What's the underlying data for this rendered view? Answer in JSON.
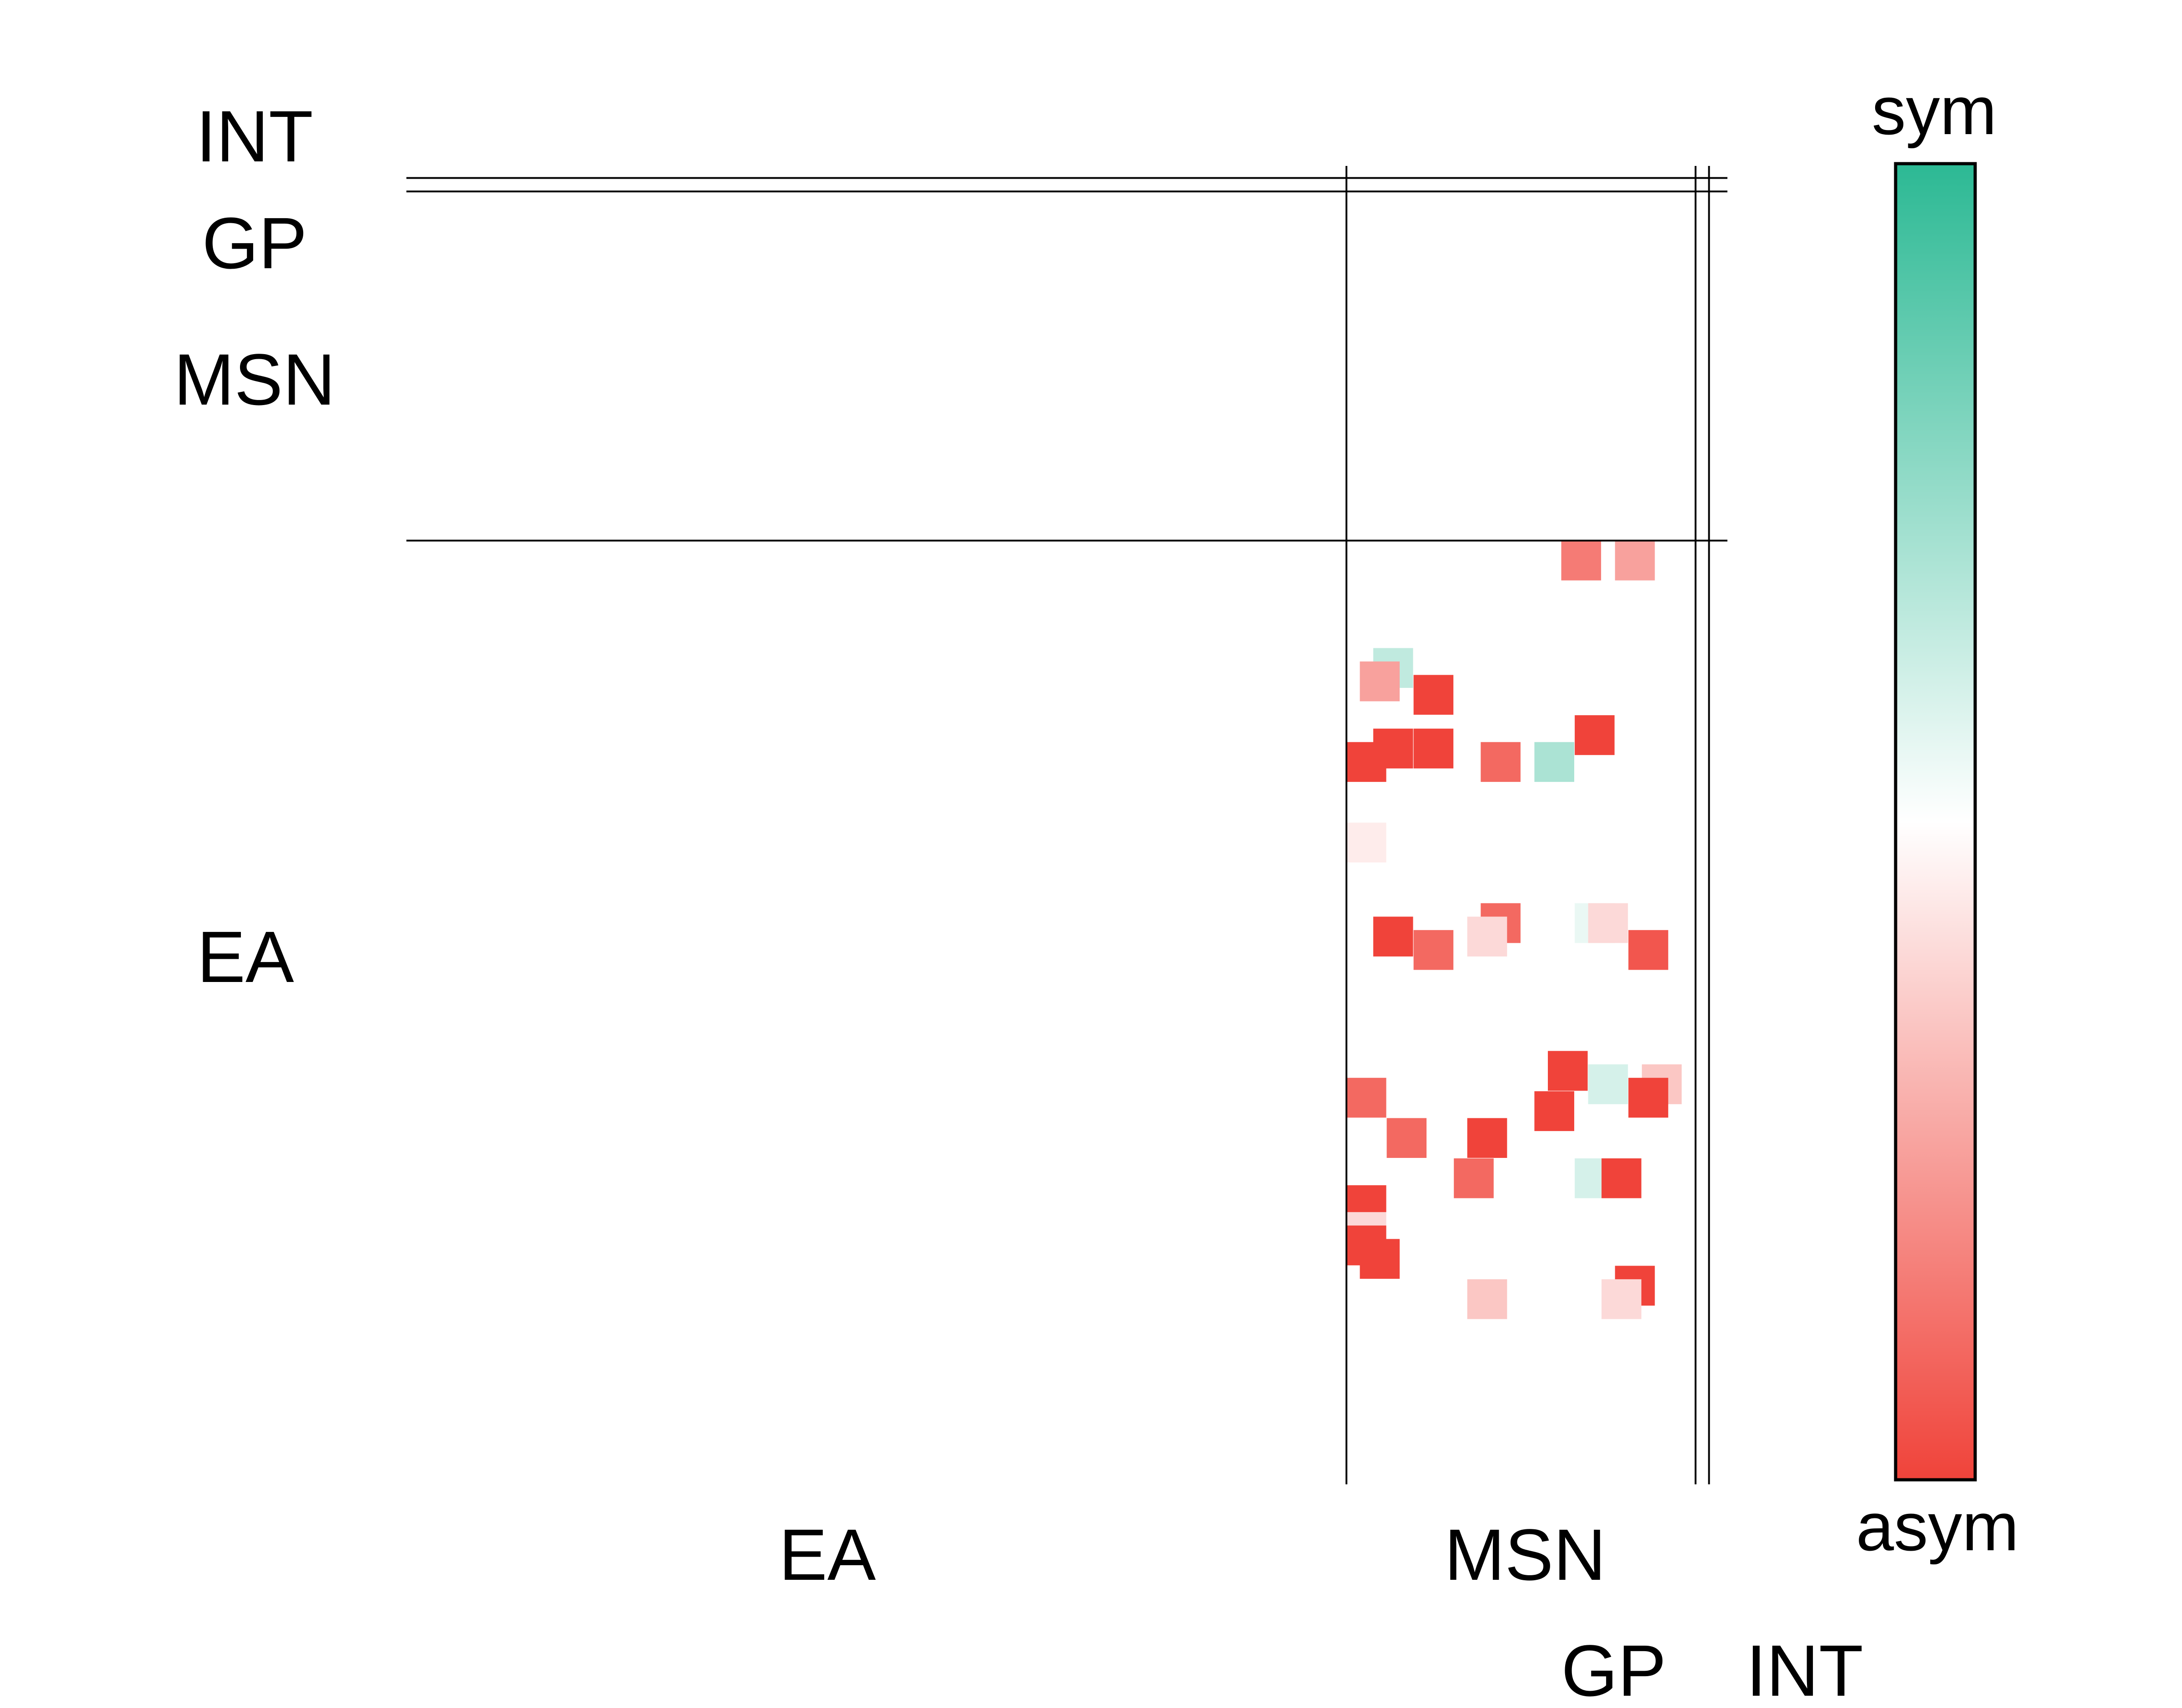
{
  "chart_data": {
    "type": "heatmap",
    "title": "",
    "xlabel": "",
    "ylabel": "",
    "groups": [
      {
        "name": "EA",
        "start": 0,
        "end": 70
      },
      {
        "name": "MSN",
        "start": 70,
        "end": 96
      },
      {
        "name": "GP",
        "start": 96,
        "end": 97
      },
      {
        "name": "INT",
        "start": 97,
        "end": 98
      }
    ],
    "n_cells": 98,
    "colorbar": {
      "top_label": "sym",
      "bottom_label": "asym",
      "colors": {
        "sym": "#2cb994",
        "mid": "#ffffff",
        "asym": "#f0433a"
      },
      "range": [
        0,
        1
      ]
    },
    "cells": [
      {
        "row": 28,
        "col": 86,
        "value": 0.15
      },
      {
        "row": 28,
        "col": 90,
        "value": 0.25
      },
      {
        "row": 36,
        "col": 72,
        "value": 0.65
      },
      {
        "row": 37,
        "col": 71,
        "value": 0.25
      },
      {
        "row": 38,
        "col": 75,
        "value": 0.0
      },
      {
        "row": 41,
        "col": 87,
        "value": 0.0
      },
      {
        "row": 42,
        "col": 72,
        "value": 0.0
      },
      {
        "row": 42,
        "col": 75,
        "value": 0.0
      },
      {
        "row": 43,
        "col": 70,
        "value": 0.0
      },
      {
        "row": 43,
        "col": 80,
        "value": 0.1
      },
      {
        "row": 43,
        "col": 84,
        "value": 0.7
      },
      {
        "row": 49,
        "col": 70,
        "value": 0.45
      },
      {
        "row": 55,
        "col": 80,
        "value": 0.1
      },
      {
        "row": 55,
        "col": 87,
        "value": 0.55
      },
      {
        "row": 55,
        "col": 88,
        "value": 0.4
      },
      {
        "row": 56,
        "col": 72,
        "value": 0.0
      },
      {
        "row": 56,
        "col": 79,
        "value": 0.4
      },
      {
        "row": 57,
        "col": 75,
        "value": 0.1
      },
      {
        "row": 57,
        "col": 91,
        "value": 0.05
      },
      {
        "row": 66,
        "col": 85,
        "value": 0.0
      },
      {
        "row": 67,
        "col": 88,
        "value": 0.6
      },
      {
        "row": 67,
        "col": 92,
        "value": 0.35
      },
      {
        "row": 68,
        "col": 70,
        "value": 0.1
      },
      {
        "row": 68,
        "col": 91,
        "value": 0.0
      },
      {
        "row": 69,
        "col": 84,
        "value": 0.0
      },
      {
        "row": 71,
        "col": 73,
        "value": 0.1
      },
      {
        "row": 71,
        "col": 79,
        "value": 0.0
      },
      {
        "row": 74,
        "col": 78,
        "value": 0.1
      },
      {
        "row": 74,
        "col": 87,
        "value": 0.6
      },
      {
        "row": 74,
        "col": 89,
        "value": 0.0
      },
      {
        "row": 76,
        "col": 70,
        "value": 0.0
      },
      {
        "row": 78,
        "col": 70,
        "value": 0.4
      },
      {
        "row": 79,
        "col": 70,
        "value": 0.0
      },
      {
        "row": 80,
        "col": 71,
        "value": 0.0
      },
      {
        "row": 80,
        "col": 79,
        "value": 0.5
      },
      {
        "row": 82,
        "col": 90,
        "value": 0.0
      },
      {
        "row": 83,
        "col": 79,
        "value": 0.35
      },
      {
        "row": 83,
        "col": 89,
        "value": 0.4
      }
    ]
  }
}
